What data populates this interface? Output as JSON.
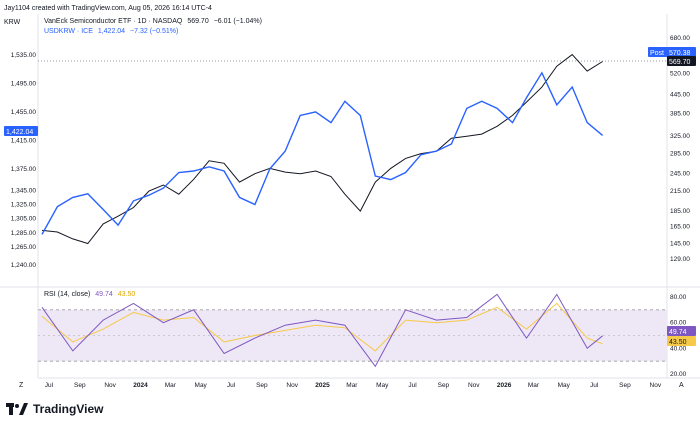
{
  "header": {
    "created_by": "Jay1104 created with TradingView.com, Aug 05, 2026 16:14 UTC-4",
    "left_axis_label": "KRW",
    "series1_name": "VanEck Semiconductor ETF · 1D · NASDAQ",
    "series1_value": "569.70",
    "series1_change": "−6.01 (−1.04%)",
    "series2_name": "USDKRW · ICE",
    "series2_value": "1,422.04",
    "series2_change": "−7.32 (−0.51%)"
  },
  "badges": {
    "krw_last": "1,422.04",
    "post_label": "Post",
    "post_value": "570.38",
    "smh_last": "569.70",
    "rsi_value": "49.74",
    "rsi_ma_value": "43.50"
  },
  "rsi_header": {
    "label": "RSI (14, close)",
    "value": "49.74",
    "ma_value": "43.50"
  },
  "footer": {
    "corner_label": "Z",
    "auto_label": "A",
    "brand": "TradingView"
  },
  "colors": {
    "krw_line": "#2962ff",
    "krw_badge": "#2962ff",
    "smh_line": "#131722",
    "post_badge": "#2962ff",
    "rsi_line": "#7e57c2",
    "rsi_ma_line": "#f7c948",
    "rsi_band": "#ede7f6",
    "axis_text": "#131722"
  },
  "chart_data": [
    {
      "type": "line",
      "title": "VanEck Semiconductor ETF · 1D · NASDAQ vs USDKRW · ICE",
      "x_ticks": [
        "Jul",
        "Sep",
        "Nov",
        "2024",
        "Mar",
        "May",
        "Jul",
        "Sep",
        "Nov",
        "2025",
        "Mar",
        "May",
        "Jul",
        "Sep",
        "Nov",
        "2026",
        "Mar",
        "May",
        "Jul",
        "Sep",
        "Nov",
        "2027"
      ],
      "left_axis": {
        "label": "KRW",
        "ticks": [
          1535,
          1495,
          1455,
          1415,
          1375,
          1345,
          1325,
          1305,
          1285,
          1265,
          1240
        ],
        "tick_labels": [
          "1,535.00",
          "1,495.00",
          "1,455.00",
          "1,415.00",
          "1,375.00",
          "1,345.00",
          "1,325.00",
          "1,305.00",
          "1,285.00",
          "1,265.00",
          "1,240.00"
        ]
      },
      "right_axis": {
        "ticks": [
          680,
          600,
          520,
          445,
          385,
          325,
          285,
          245,
          215,
          185,
          165,
          145,
          129
        ],
        "tick_labels": [
          "680.00",
          "600.00",
          "520.00",
          "445.00",
          "385.00",
          "325.00",
          "285.00",
          "245.00",
          "215.00",
          "185.00",
          "165.00",
          "145.00",
          "129.00"
        ],
        "scale": "log"
      },
      "series": [
        {
          "name": "USDKRW",
          "axis": "left",
          "dates": [
            "2023-07",
            "2023-08",
            "2023-09",
            "2023-10",
            "2023-11",
            "2023-12",
            "2024-01",
            "2024-02",
            "2024-03",
            "2024-04",
            "2024-05",
            "2024-06",
            "2024-07",
            "2024-08",
            "2024-09",
            "2024-10",
            "2024-11",
            "2024-12",
            "2025-01",
            "2025-02",
            "2025-03",
            "2025-04",
            "2025-05",
            "2025-06",
            "2025-07",
            "2025-08",
            "2025-09",
            "2025-10",
            "2025-11",
            "2025-12",
            "2026-01",
            "2026-02",
            "2026-03",
            "2026-04",
            "2026-05",
            "2026-06",
            "2026-07",
            "2026-08"
          ],
          "values": [
            1283,
            1322,
            1335,
            1340,
            1318,
            1296,
            1330,
            1338,
            1348,
            1370,
            1372,
            1378,
            1372,
            1335,
            1325,
            1375,
            1400,
            1450,
            1455,
            1440,
            1470,
            1450,
            1365,
            1360,
            1370,
            1395,
            1400,
            1410,
            1460,
            1470,
            1460,
            1440,
            1475,
            1510,
            1465,
            1490,
            1440,
            1422.04
          ]
        },
        {
          "name": "VanEck Semiconductor ETF",
          "axis": "right",
          "dates": [
            "2023-07",
            "2023-08",
            "2023-09",
            "2023-10",
            "2023-11",
            "2023-12",
            "2024-01",
            "2024-02",
            "2024-03",
            "2024-04",
            "2024-05",
            "2024-06",
            "2024-07",
            "2024-08",
            "2024-09",
            "2024-10",
            "2024-11",
            "2024-12",
            "2025-01",
            "2025-02",
            "2025-03",
            "2025-04",
            "2025-05",
            "2025-06",
            "2025-07",
            "2025-08",
            "2025-09",
            "2025-10",
            "2025-11",
            "2025-12",
            "2026-01",
            "2026-02",
            "2026-03",
            "2026-04",
            "2026-05",
            "2026-06",
            "2026-07",
            "2026-08"
          ],
          "values": [
            160,
            158,
            150,
            145,
            168,
            178,
            190,
            215,
            225,
            210,
            235,
            270,
            265,
            230,
            245,
            255,
            248,
            245,
            250,
            240,
            210,
            185,
            230,
            255,
            275,
            285,
            290,
            320,
            325,
            330,
            350,
            380,
            420,
            470,
            550,
            600,
            530,
            569.7
          ]
        }
      ]
    },
    {
      "type": "line",
      "title": "RSI (14, close)",
      "right_axis": {
        "ticks": [
          80,
          60,
          40,
          20
        ],
        "tick_labels": [
          "80.00",
          "60.00",
          "40.00",
          "20.00"
        ]
      },
      "band": [
        30,
        70
      ],
      "series": [
        {
          "name": "RSI",
          "dates": [
            "2023-07",
            "2023-09",
            "2023-11",
            "2024-01",
            "2024-03",
            "2024-05",
            "2024-07",
            "2024-09",
            "2024-11",
            "2025-01",
            "2025-03",
            "2025-05",
            "2025-07",
            "2025-09",
            "2025-11",
            "2026-01",
            "2026-03",
            "2026-05",
            "2026-07",
            "2026-08"
          ],
          "values": [
            72,
            38,
            62,
            75,
            60,
            70,
            36,
            48,
            58,
            62,
            58,
            26,
            70,
            62,
            64,
            82,
            48,
            82,
            40,
            49.74
          ]
        },
        {
          "name": "RSI-based MA",
          "dates": [
            "2023-07",
            "2023-09",
            "2023-11",
            "2024-01",
            "2024-03",
            "2024-05",
            "2024-07",
            "2024-09",
            "2024-11",
            "2025-01",
            "2025-03",
            "2025-05",
            "2025-07",
            "2025-09",
            "2025-11",
            "2026-01",
            "2026-03",
            "2026-05",
            "2026-07",
            "2026-08"
          ],
          "values": [
            65,
            45,
            55,
            68,
            62,
            64,
            45,
            50,
            54,
            58,
            56,
            38,
            62,
            60,
            62,
            72,
            55,
            75,
            48,
            43.5
          ]
        }
      ]
    }
  ]
}
